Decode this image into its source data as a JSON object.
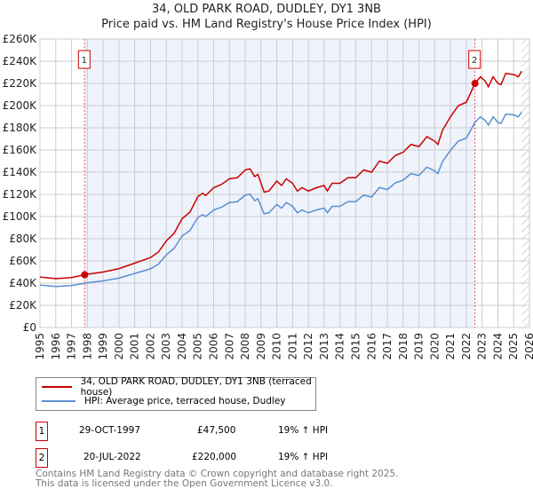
{
  "chart_data": {
    "type": "line",
    "title": "34, OLD PARK ROAD, DUDLEY, DY1 3NB",
    "subtitle": "Price paid vs. HM Land Registry's House Price Index (HPI)",
    "xlim": [
      1995,
      2026
    ],
    "ylim": [
      0,
      260000
    ],
    "yticks": [
      "£0",
      "£20K",
      "£40K",
      "£60K",
      "£80K",
      "£100K",
      "£120K",
      "£140K",
      "£160K",
      "£180K",
      "£200K",
      "£220K",
      "£240K",
      "£260K"
    ],
    "xticks": [
      "1995",
      "1996",
      "1997",
      "1998",
      "1999",
      "2000",
      "2001",
      "2002",
      "2003",
      "2004",
      "2005",
      "2006",
      "2007",
      "2008",
      "2009",
      "2010",
      "2011",
      "2012",
      "2013",
      "2014",
      "2015",
      "2016",
      "2017",
      "2018",
      "2019",
      "2020",
      "2021",
      "2022",
      "2023",
      "2024",
      "2025",
      "2026"
    ],
    "grid": true,
    "shaded_range": [
      1997.83,
      2022.55
    ],
    "hatched_from": 2025.5,
    "x": [
      1995,
      1996,
      1997,
      1997.83,
      1998,
      1999,
      2000,
      2001,
      2002,
      2002.5,
      2003,
      2003.5,
      2004,
      2004.5,
      2005,
      2005.3,
      2005.5,
      2006,
      2006.5,
      2007,
      2007.5,
      2008,
      2008.3,
      2008.6,
      2008.8,
      2009.2,
      2009.5,
      2010,
      2010.3,
      2010.6,
      2011,
      2011.3,
      2011.6,
      2012,
      2012.5,
      2013,
      2013.2,
      2013.5,
      2014,
      2014.5,
      2015,
      2015.5,
      2016,
      2016.5,
      2017,
      2017.5,
      2018,
      2018.5,
      2019,
      2019.5,
      2020,
      2020.2,
      2020.5,
      2021,
      2021.5,
      2022,
      2022.55,
      2022.9,
      2023.2,
      2023.4,
      2023.7,
      2024,
      2024.2,
      2024.5,
      2025,
      2025.3,
      2025.5
    ],
    "series": [
      {
        "name": "34, OLD PARK ROAD, DUDLEY, DY1 3NB (terraced house)",
        "color": "#cc0000",
        "values": [
          45500,
          44000,
          45000,
          47500,
          48000,
          50000,
          53000,
          58000,
          63000,
          68000,
          78000,
          85000,
          98000,
          104000,
          118000,
          121000,
          119000,
          126000,
          129000,
          134000,
          135000,
          142000,
          143000,
          136000,
          138000,
          122000,
          123000,
          132000,
          128000,
          134000,
          130000,
          123000,
          126000,
          123000,
          126000,
          128000,
          123000,
          130000,
          130000,
          135000,
          135000,
          142000,
          140000,
          150000,
          148000,
          155000,
          158000,
          165000,
          163000,
          172000,
          168000,
          165000,
          178000,
          190000,
          200000,
          203000,
          220000,
          226000,
          222000,
          217000,
          226000,
          220000,
          219000,
          229000,
          228000,
          226000,
          231000
        ]
      },
      {
        "name": "HPI: Average price, terraced house, Dudley",
        "color": "#5b8fd0",
        "values": [
          38200,
          37000,
          37800,
          39900,
          40300,
          42000,
          44500,
          48700,
          52900,
          57100,
          65500,
          71400,
          82400,
          87400,
          99200,
          101700,
          100000,
          105900,
          108400,
          112600,
          113400,
          119300,
          120200,
          114300,
          116000,
          102500,
          103400,
          110900,
          107600,
          112600,
          109200,
          103400,
          105900,
          103400,
          105900,
          107600,
          103400,
          109200,
          109200,
          113400,
          113400,
          119300,
          117600,
          126100,
          124400,
          130300,
          132800,
          138700,
          137000,
          144500,
          141200,
          138700,
          149600,
          159700,
          168100,
          170600,
          184900,
          189900,
          186600,
          182400,
          189900,
          184900,
          184000,
          192400,
          191600,
          189900,
          194100
        ]
      }
    ],
    "sales": [
      {
        "label": "1",
        "x": 1997.83,
        "price": 47500,
        "date": "29-OCT-1997",
        "price_text": "£47,500",
        "hpi_text": "19% ↑ HPI"
      },
      {
        "label": "2",
        "x": 2022.55,
        "price": 220000,
        "date": "20-JUL-2022",
        "price_text": "£220,000",
        "hpi_text": "19% ↑ HPI"
      }
    ],
    "legend_placement": "below"
  },
  "footer": {
    "line1": "Contains HM Land Registry data © Crown copyright and database right 2025.",
    "line2": "This data is licensed under the Open Government Licence v3.0."
  }
}
